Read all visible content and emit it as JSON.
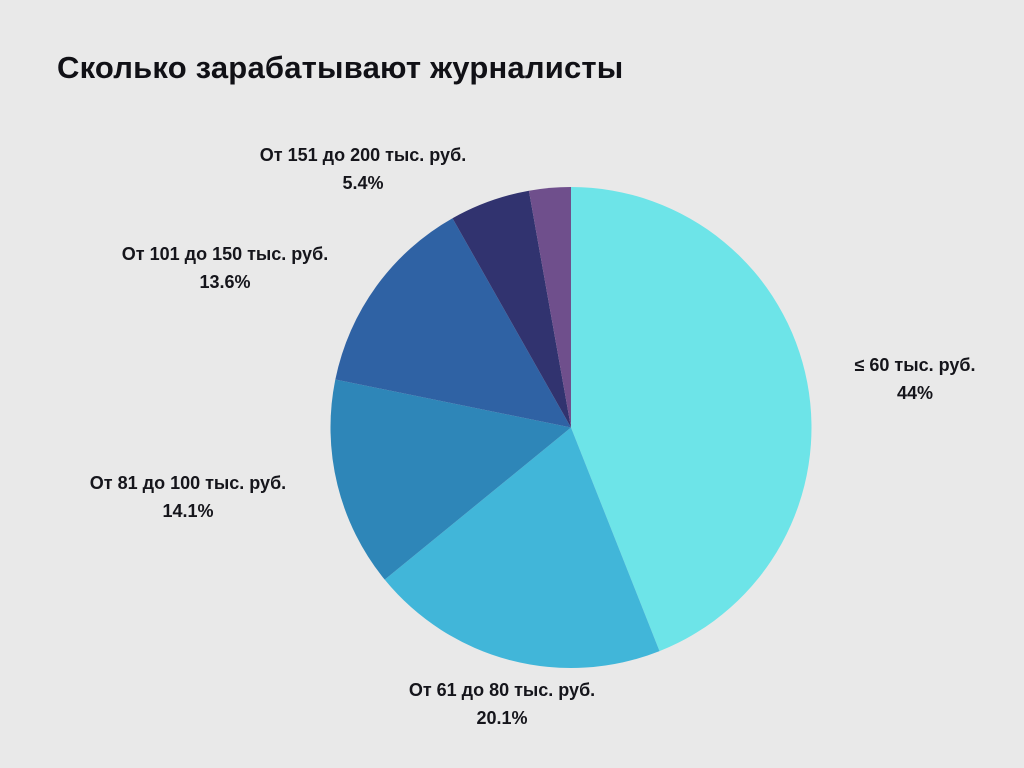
{
  "title": "Сколько зарабатывают журналисты",
  "background_color": "#E9E9E9",
  "text_color": "#15151b",
  "chart_data": {
    "type": "pie",
    "title": "Сколько зарабатывают журналисты",
    "legend_position": "none",
    "labels_position": "outside",
    "start_angle_deg": 0,
    "direction": "clockwise",
    "slices": [
      {
        "label": "≤ 60 тыс. руб.",
        "pct_text": "44%",
        "value": 44,
        "color": "#6DE4E8"
      },
      {
        "label": "От 61 до 80 тыс. руб.",
        "pct_text": "20.1%",
        "value": 20.1,
        "color": "#41B6D9"
      },
      {
        "label": "От 81 до 100 тыс. руб.",
        "pct_text": "14.1%",
        "value": 14.1,
        "color": "#2E86B8"
      },
      {
        "label": "От 101 до 150 тыс. руб.",
        "pct_text": "13.6%",
        "value": 13.6,
        "color": "#2F62A4"
      },
      {
        "label": "От 151 до 200 тыс. руб.",
        "pct_text": "5.4%",
        "value": 5.4,
        "color": "#31336F"
      },
      {
        "label": "",
        "pct_text": "",
        "value": 2.8,
        "color": "#6F4F8C",
        "unlabeled": true
      }
    ]
  }
}
